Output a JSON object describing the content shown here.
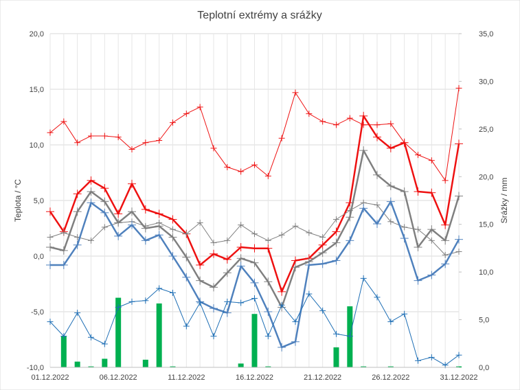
{
  "chart_data": {
    "type": "line",
    "title": "Teplotní extrémy a srážky",
    "ylabel": "Teplota / °C",
    "y2label": "Srážky / mm",
    "ylim": [
      -10,
      20
    ],
    "y2lim": [
      0,
      35
    ],
    "yticks": [
      "-10,0",
      "-5,0",
      "0,0",
      "5,0",
      "10,0",
      "15,0",
      "20,0"
    ],
    "y2ticks": [
      "0,0",
      "5,0",
      "10,0",
      "15,0",
      "20,0",
      "25,0",
      "30,0",
      "35,0"
    ],
    "xtick_labels": [
      "01.12.2022",
      "06.12.2022",
      "11.12.2022",
      "16.12.2022",
      "21.12.2022",
      "26.12.2022",
      "31.12.2022"
    ],
    "grid": true,
    "days": 31,
    "series": [
      {
        "color": "#ee1111",
        "style": "thin",
        "values": [
          11.1,
          12.1,
          10.2,
          10.8,
          10.8,
          10.7,
          9.6,
          10.2,
          10.4,
          12.0,
          12.8,
          13.4,
          9.7,
          8.0,
          7.6,
          8.2,
          7.2,
          10.6,
          14.7,
          12.8,
          12.1,
          11.8,
          12.4,
          11.8,
          11.8,
          11.9,
          10.2,
          9.1,
          8.6,
          6.8,
          15.1
        ]
      },
      {
        "color": "#ee1111",
        "style": "thick",
        "values": [
          4.0,
          2.2,
          5.6,
          6.8,
          6.1,
          3.8,
          6.5,
          4.2,
          3.8,
          3.3,
          2.0,
          -0.8,
          0.2,
          -0.3,
          0.8,
          0.7,
          0.7,
          -3.2,
          -0.4,
          -0.2,
          1.0,
          2.2,
          4.8,
          12.6,
          10.7,
          9.7,
          10.2,
          5.8,
          5.7,
          2.8,
          10.1
        ]
      },
      {
        "color": "#7f7f7f",
        "style": "thick",
        "values": [
          0.8,
          0.5,
          4.0,
          5.8,
          4.9,
          3.0,
          4.0,
          2.5,
          2.7,
          1.7,
          -0.1,
          -2.2,
          -2.8,
          -1.5,
          -0.2,
          -0.6,
          -2.3,
          -4.6,
          -1.0,
          -0.5,
          0.3,
          1.2,
          3.5,
          9.5,
          7.3,
          6.3,
          5.8,
          0.8,
          2.4,
          1.4,
          5.4
        ]
      },
      {
        "color": "#7f7f7f",
        "style": "thin",
        "values": [
          1.7,
          2.1,
          1.7,
          1.4,
          2.6,
          3.0,
          3.1,
          2.7,
          3.0,
          2.4,
          2.0,
          3.0,
          1.2,
          1.4,
          2.8,
          2.0,
          1.4,
          1.9,
          2.7,
          2.1,
          1.7,
          3.3,
          4.1,
          4.8,
          4.6,
          3.1,
          2.6,
          2.4,
          1.4,
          0.1,
          0.4
        ]
      },
      {
        "color": "#4f81bd",
        "style": "thick",
        "values": [
          -0.8,
          -0.8,
          1.0,
          4.8,
          3.9,
          1.8,
          2.8,
          1.4,
          1.9,
          0.0,
          -1.9,
          -4.1,
          -4.7,
          -5.1,
          -0.9,
          -2.4,
          -5.0,
          -8.2,
          -7.7,
          -0.8,
          -0.7,
          -0.4,
          1.4,
          4.3,
          2.9,
          4.9,
          1.6,
          -2.2,
          -1.7,
          -0.7,
          1.5
        ]
      },
      {
        "color": "#1f6fb5",
        "style": "thin",
        "values": [
          -5.9,
          -7.2,
          -5.1,
          -7.3,
          -7.9,
          -4.6,
          -4.1,
          -4.0,
          -2.9,
          -3.3,
          -6.3,
          -4.2,
          -7.2,
          -4.1,
          -4.2,
          -3.8,
          -7.2,
          -4.4,
          -5.9,
          -3.4,
          -4.9,
          -7.0,
          -7.2,
          -2.0,
          -3.7,
          -5.9,
          -5.2,
          -9.4,
          -9.1,
          -9.8,
          -8.9
        ]
      }
    ],
    "bars": {
      "color": "#00b050",
      "values": [
        0,
        3.3,
        0.6,
        0.1,
        0.9,
        7.3,
        0,
        0.8,
        6.7,
        0.1,
        0,
        0,
        0,
        0,
        0.4,
        5.6,
        0.1,
        0,
        0,
        0,
        0,
        2.1,
        6.4,
        0.1,
        0,
        0.1,
        0,
        0,
        0,
        0,
        0.1
      ]
    }
  }
}
